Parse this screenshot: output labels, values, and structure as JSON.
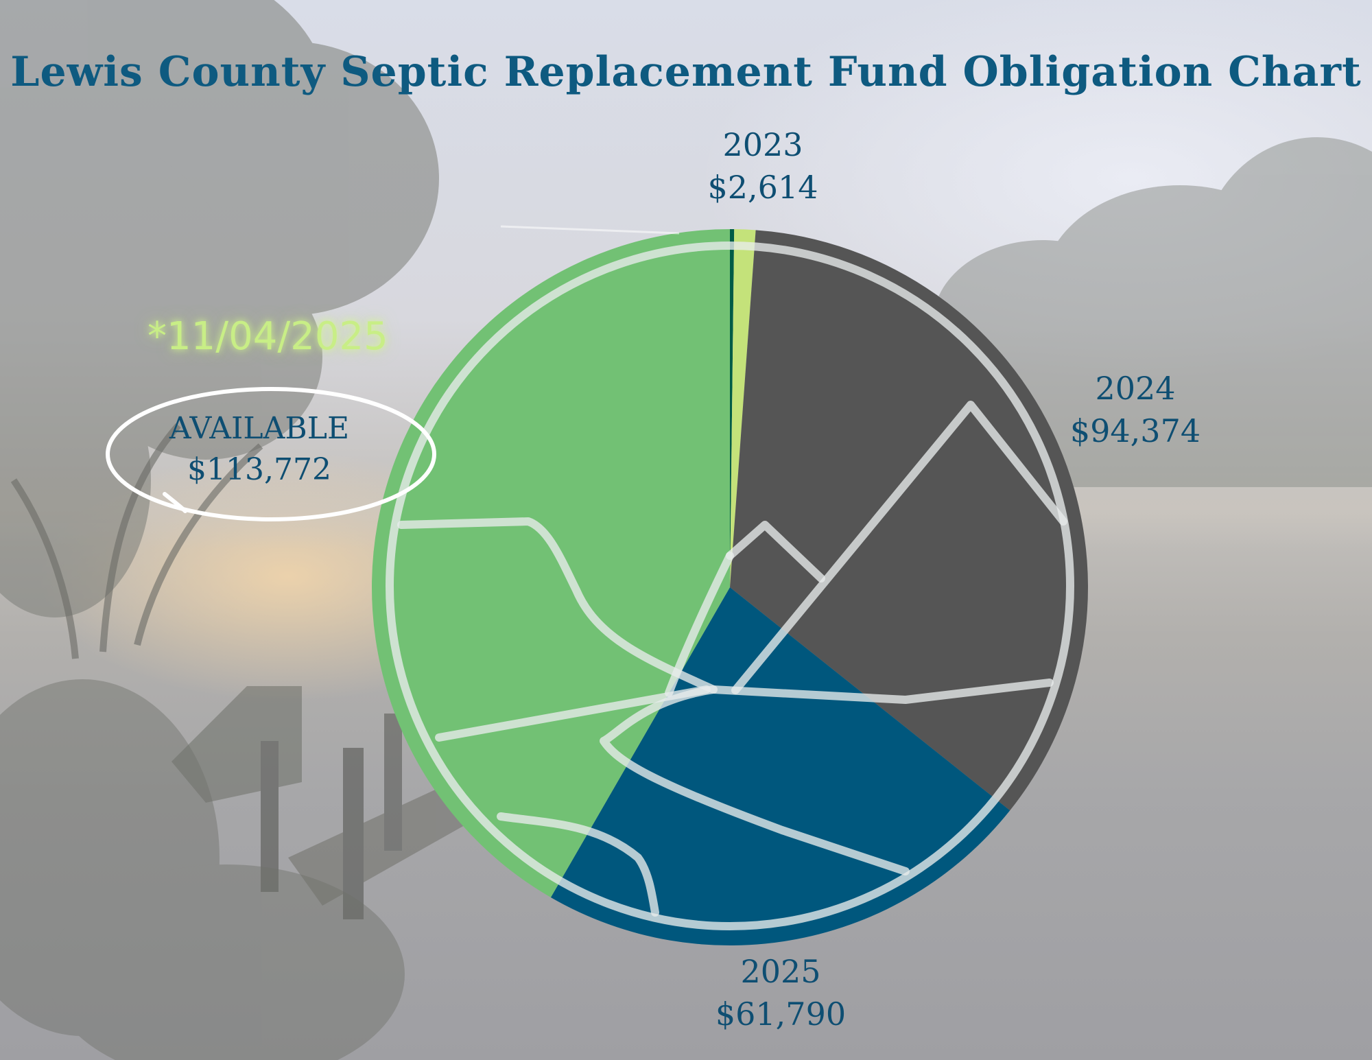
{
  "chart_data": {
    "type": "pie",
    "title": "Lewis County Septic Replacement Fund Obligation Chart",
    "slices": [
      {
        "label": "2023",
        "value": 2614,
        "value_label": "$2,614",
        "color": "#c4e27a"
      },
      {
        "label": "2024",
        "value": 94374,
        "value_label": "$94,374",
        "color": "#555555"
      },
      {
        "label": "2025",
        "value": 61790,
        "value_label": "$61,790",
        "color": "#00577d"
      },
      {
        "label": "AVAILABLE",
        "value": 113772,
        "value_label": "$113,772",
        "color": "#72c174"
      }
    ],
    "annotation": "*11/04/2025"
  },
  "colors": {
    "title": "#0e5a80",
    "label": "#0e4e72",
    "thin_edge": "#005c46",
    "outline": "rgba(232,236,236,0.78)",
    "annotation": "#c8ee86"
  }
}
